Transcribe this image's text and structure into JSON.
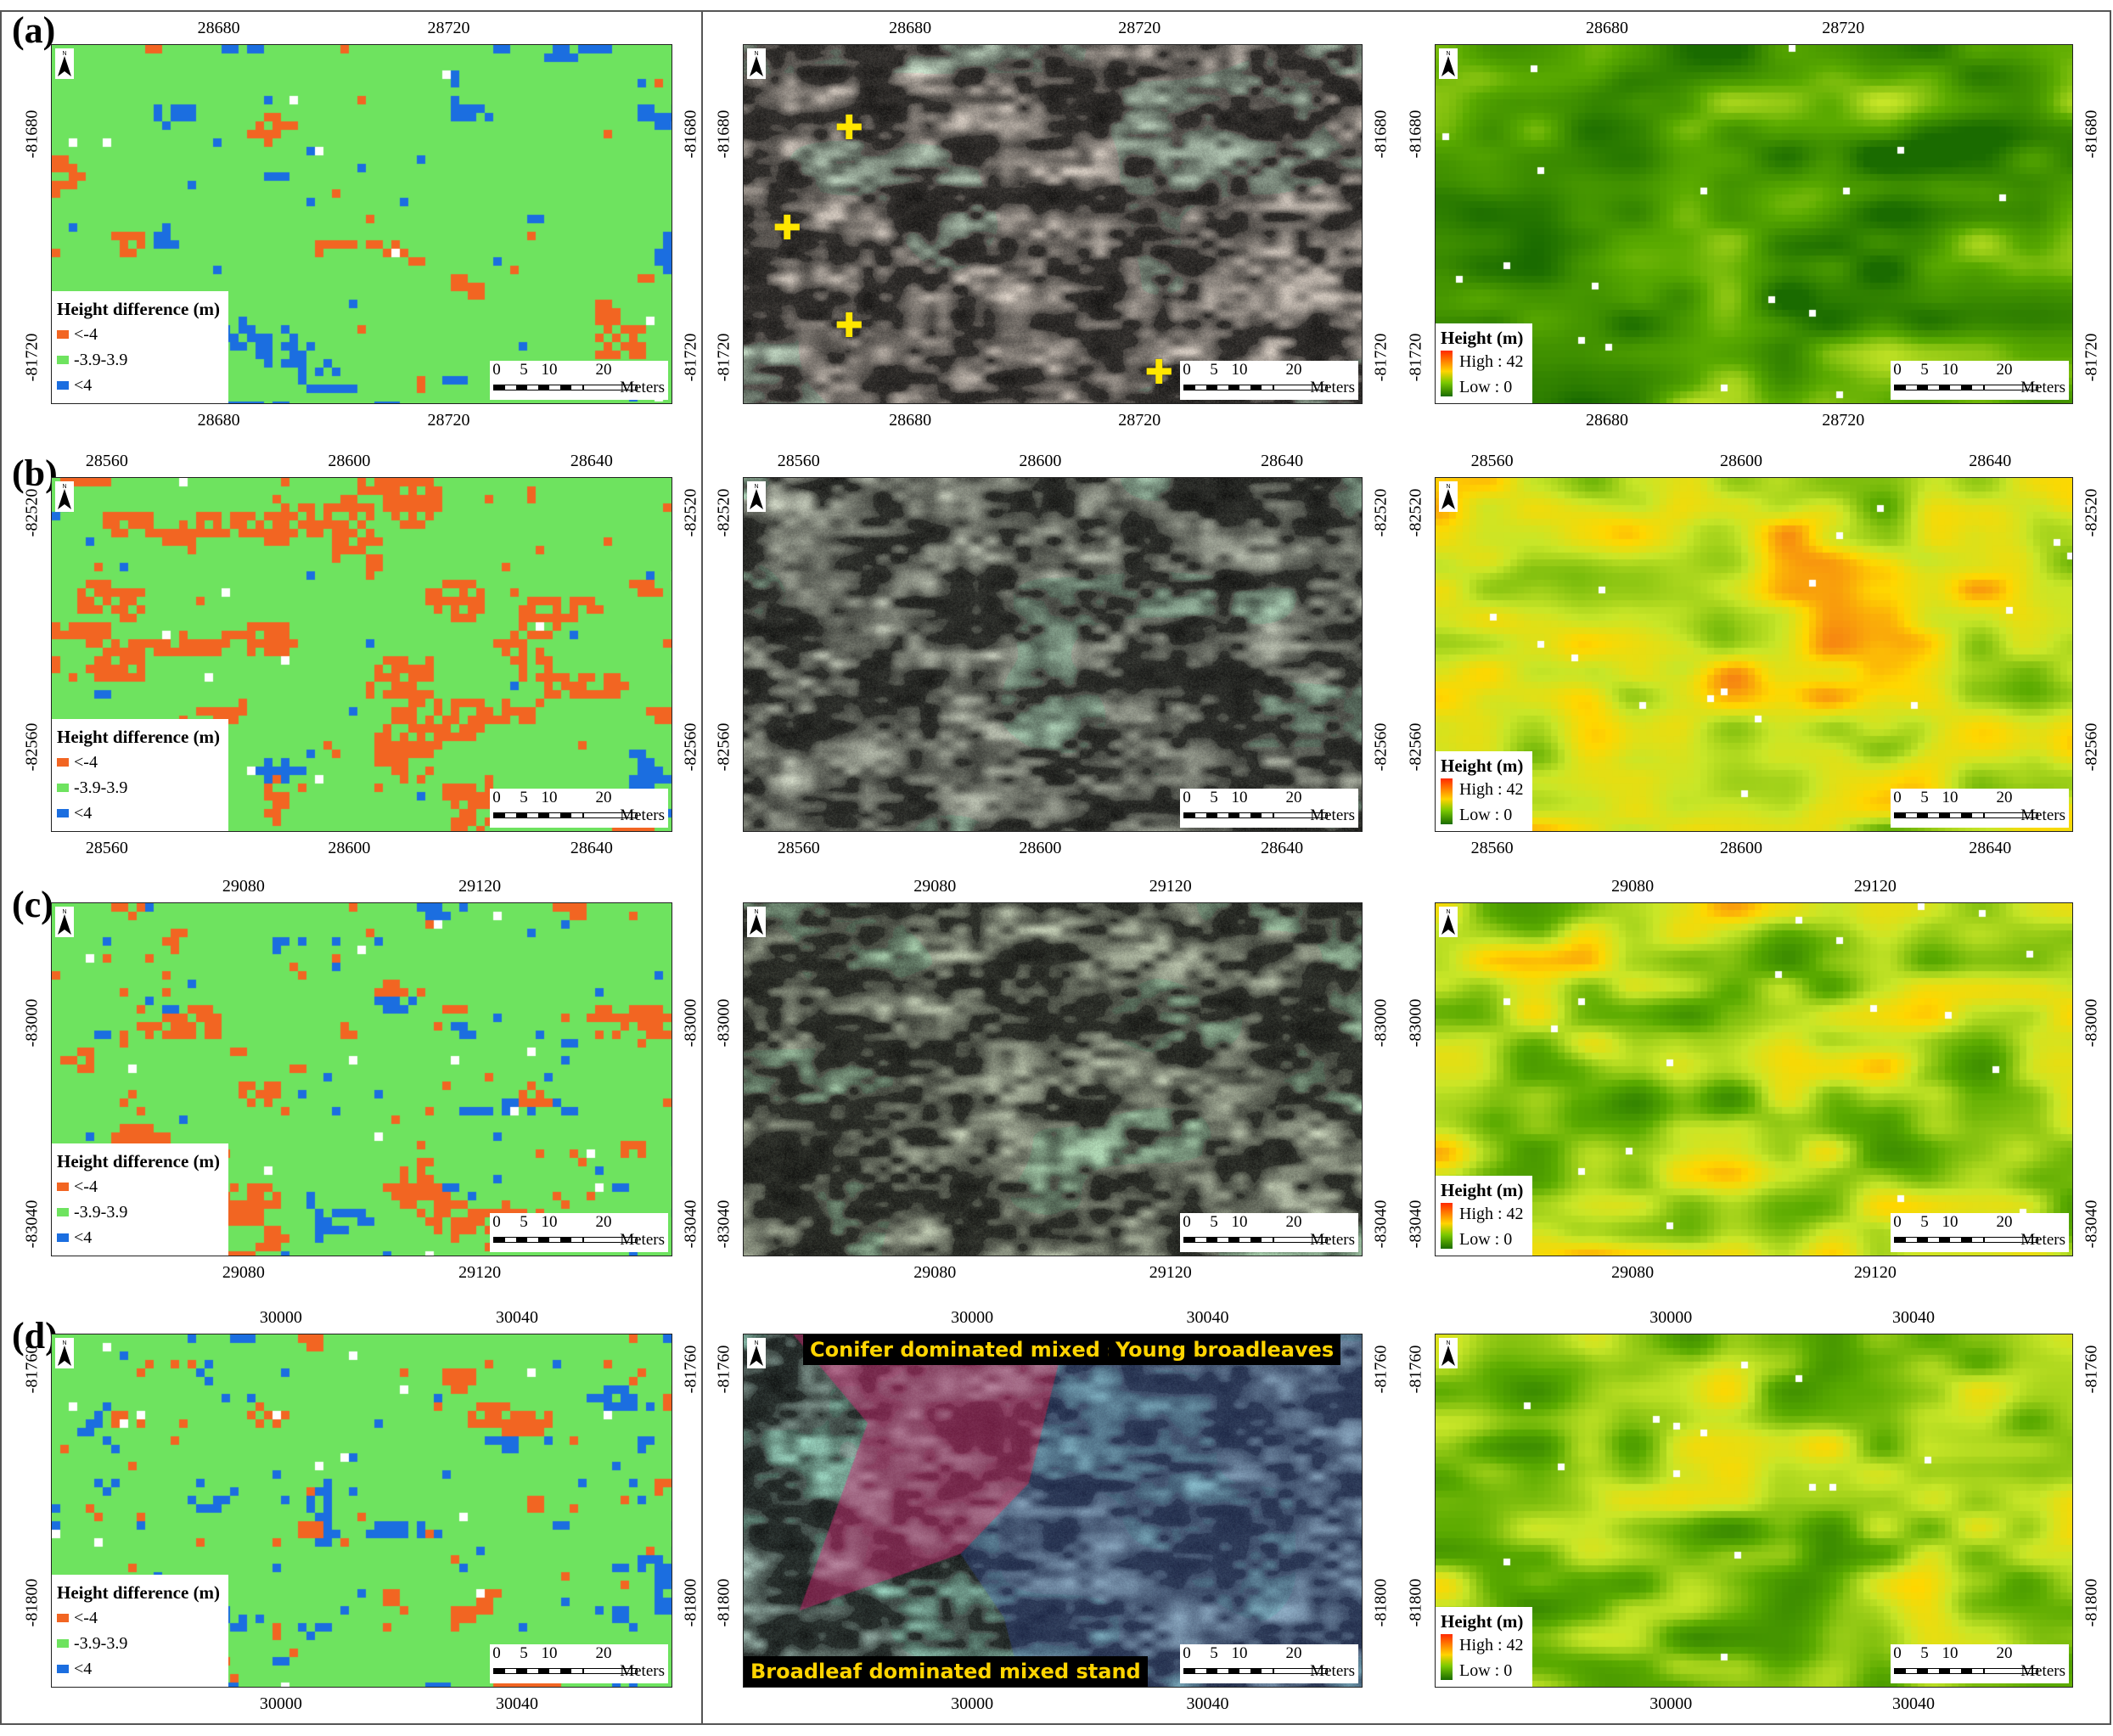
{
  "colors": {
    "neg": "#f26522",
    "mid": "#6ee35f",
    "pos": "#1b6ee0",
    "chm_high": "#ff2a00",
    "chm_low": "#1a6b00"
  },
  "legend_diff": {
    "title": "Height difference (m)",
    "items": [
      "<-4",
      "-3.9-3.9",
      "<4"
    ]
  },
  "legend_height": {
    "title": "Height (m)",
    "high": "High : 42",
    "low": "Low : 0"
  },
  "scale": {
    "ticks": [
      "0",
      "5",
      "10",
      "20"
    ],
    "unit": "Meters"
  },
  "rows": [
    {
      "label": "(a)",
      "x_ticks": [
        "28680",
        "28720"
      ],
      "y_ticks": [
        "-81680",
        "-81720"
      ],
      "stand_labels": []
    },
    {
      "label": "(b)",
      "x_ticks": [
        "28560",
        "28600",
        "28640"
      ],
      "y_ticks": [
        "-82520",
        "-82560"
      ],
      "stand_labels": []
    },
    {
      "label": "(c)",
      "x_ticks": [
        "29080",
        "29120"
      ],
      "y_ticks": [
        "-83000",
        "-83040"
      ],
      "stand_labels": []
    },
    {
      "label": "(d)",
      "x_ticks": [
        "30000",
        "30040"
      ],
      "y_ticks": [
        "-81760",
        "-81800"
      ],
      "stand_labels": [
        "Conifer dominated mixed stand",
        "Young broadleaves",
        "Broadleaf dominated mixed stand"
      ]
    }
  ]
}
